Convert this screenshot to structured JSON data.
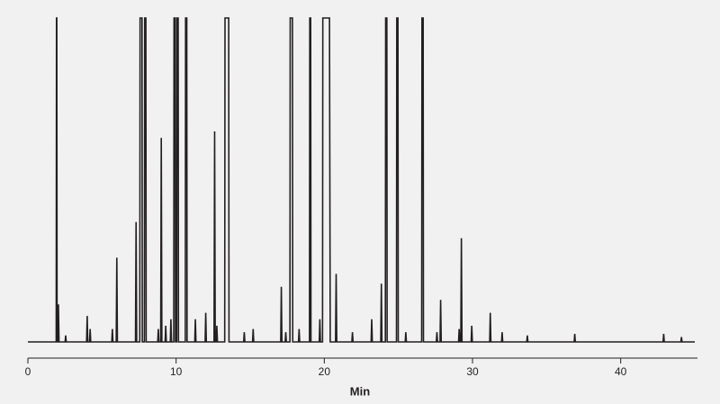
{
  "chart_data": {
    "type": "line",
    "x_label": "Min",
    "color": "#231f20",
    "xlim": [
      0,
      45
    ],
    "xticks": [
      0,
      10,
      20,
      30,
      40
    ],
    "ylim": [
      -5,
      100
    ],
    "x": [
      0,
      1.91,
      1.93,
      1.95,
      1.97,
      2.02,
      2.06,
      2.1,
      2.51,
      2.55,
      2.59,
      3.96,
      4.0,
      4.04,
      4.16,
      4.2,
      4.24,
      5.66,
      5.7,
      5.74,
      5.96,
      6.0,
      6.04,
      7.26,
      7.3,
      7.34,
      7.55,
      7.57,
      7.7,
      7.72,
      7.86,
      7.88,
      7.96,
      7.98,
      8.76,
      8.8,
      8.84,
      8.96,
      9.0,
      9.04,
      9.26,
      9.3,
      9.34,
      9.61,
      9.65,
      9.69,
      9.84,
      9.86,
      9.94,
      9.96,
      10.04,
      10.06,
      10.14,
      10.16,
      10.62,
      10.64,
      10.72,
      10.74,
      11.26,
      11.3,
      11.34,
      11.96,
      12.0,
      12.04,
      12.56,
      12.6,
      12.64,
      12.71,
      12.75,
      12.79,
      13.28,
      13.3,
      13.55,
      13.57,
      14.56,
      14.6,
      14.64,
      15.16,
      15.2,
      15.24,
      17.06,
      17.1,
      17.14,
      17.36,
      17.4,
      17.44,
      17.68,
      17.7,
      17.85,
      17.87,
      18.26,
      18.3,
      18.34,
      19.0,
      19.02,
      19.08,
      19.1,
      19.66,
      19.7,
      19.74,
      19.88,
      19.9,
      20.35,
      20.4,
      20.76,
      20.8,
      20.84,
      21.86,
      21.9,
      21.94,
      23.16,
      23.2,
      23.24,
      23.81,
      23.85,
      23.89,
      24.12,
      24.14,
      24.22,
      24.24,
      24.87,
      24.89,
      24.97,
      24.99,
      25.46,
      25.5,
      25.54,
      26.57,
      26.59,
      26.67,
      26.69,
      27.56,
      27.6,
      27.64,
      27.81,
      27.85,
      27.89,
      29.06,
      29.1,
      29.14,
      29.21,
      29.25,
      29.29,
      29.91,
      29.95,
      29.99,
      31.16,
      31.2,
      31.24,
      31.96,
      32.0,
      32.04,
      33.66,
      33.7,
      33.74,
      36.86,
      36.9,
      36.94,
      42.86,
      42.9,
      42.94,
      44.06,
      44.1,
      44.14,
      45
    ],
    "values": [
      0,
      0,
      100,
      100,
      0,
      0,
      11.6,
      0,
      0,
      2,
      0,
      0,
      8,
      0,
      0,
      4,
      0,
      0,
      4,
      0,
      0,
      26,
      0,
      0,
      37,
      0,
      0,
      100,
      100,
      0,
      0,
      100,
      100,
      0,
      0,
      4,
      0,
      0,
      63,
      0,
      0,
      5,
      0,
      0,
      7,
      0,
      0,
      100,
      100,
      0,
      0,
      100,
      100,
      0,
      0,
      100,
      100,
      0,
      0,
      7,
      0,
      0,
      9,
      0,
      0,
      65,
      0,
      0,
      5,
      0,
      0,
      100,
      100,
      0,
      0,
      3,
      0,
      0,
      4,
      0,
      0,
      17,
      0,
      0,
      3,
      0,
      0,
      100,
      100,
      0,
      0,
      4,
      0,
      0,
      100,
      100,
      0,
      0,
      7,
      0,
      0,
      100,
      100,
      0,
      0,
      21,
      0,
      0,
      3,
      0,
      0,
      7,
      0,
      0,
      18,
      0,
      0,
      100,
      100,
      0,
      0,
      100,
      100,
      0,
      0,
      3,
      0,
      0,
      100,
      100,
      0,
      0,
      3,
      0,
      0,
      13,
      0,
      0,
      4,
      0,
      0,
      32,
      0,
      0,
      5,
      0,
      0,
      9,
      0,
      0,
      3,
      0,
      0,
      2,
      0,
      0,
      2.5,
      0,
      0,
      2.5,
      0,
      0,
      1.5,
      0,
      0
    ]
  }
}
